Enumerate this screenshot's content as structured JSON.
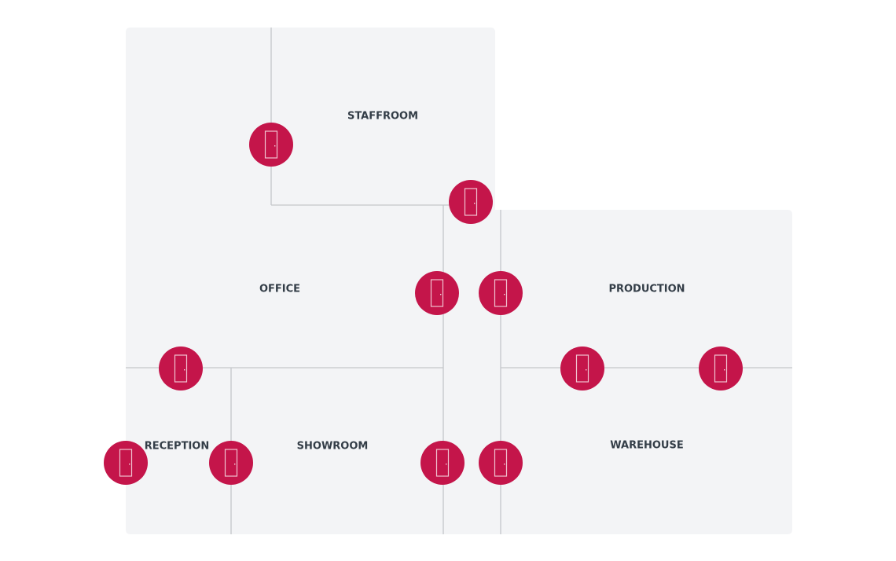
{
  "floorplan": {
    "rooms": [
      {
        "label": "STAFFROOM"
      },
      {
        "label": "OFFICE"
      },
      {
        "label": "PRODUCTION"
      },
      {
        "label": "RECEPTION"
      },
      {
        "label": "SHOWROOM"
      },
      {
        "label": "WAREHOUSE"
      }
    ],
    "door_icon": "door-icon",
    "colors": {
      "floor": "#f3f4f6",
      "walls": "#c4c6ca",
      "door": "#c4154a",
      "text": "#333d47"
    }
  }
}
